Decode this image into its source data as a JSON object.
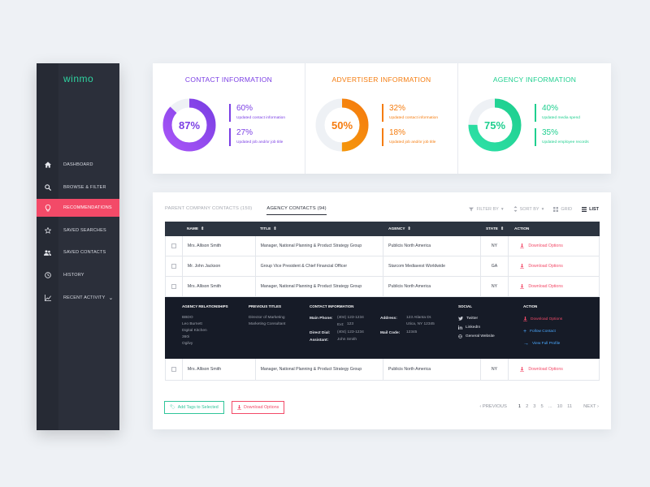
{
  "sidebar": {
    "logo": {
      "text": "winmo",
      "accent_color": "#2fd3a0",
      "dot_color": "#ff4b6a"
    },
    "items": [
      {
        "label": "DASHBOARD",
        "icon": "home-icon"
      },
      {
        "label": "BROWSE & FILTER",
        "icon": "search-icon"
      },
      {
        "label": "RECOMMENDATIONS",
        "icon": "lightbulb-icon",
        "active": true
      },
      {
        "label": "SAVED SEARCHES",
        "icon": "star-icon"
      },
      {
        "label": "SAVED CONTACTS",
        "icon": "people-icon"
      },
      {
        "label": "HISTORY",
        "icon": "clock-icon"
      },
      {
        "label": "RECENT ACTIVITY",
        "icon": "chart-line-icon",
        "has_caret": true
      }
    ]
  },
  "stats": [
    {
      "title": "CONTACT INFORMATION",
      "percent": "87%",
      "fill": 0.87,
      "color": "#7b3fe4",
      "color2": "#a855f7",
      "metrics": [
        {
          "value": "60%",
          "caption": "Updated contact information"
        },
        {
          "value": "27%",
          "caption": "Updated job and/or job title"
        }
      ]
    },
    {
      "title": "ADVERTISER INFORMATION",
      "percent": "50%",
      "fill": 0.5,
      "color": "#f57c0f",
      "color2": "#f59e0b",
      "metrics": [
        {
          "value": "32%",
          "caption": "Updated contact information"
        },
        {
          "value": "18%",
          "caption": "Updated job and/or job title"
        }
      ]
    },
    {
      "title": "AGENCY INFORMATION",
      "percent": "75%",
      "fill": 0.75,
      "color": "#1fcf8f",
      "color2": "#2de0a6",
      "metrics": [
        {
          "value": "40%",
          "caption": "Updated media spend"
        },
        {
          "value": "35%",
          "caption": "Updated employee records"
        }
      ]
    }
  ],
  "tabs": [
    {
      "label": "PARENT COMPANY CONTACTS (150)",
      "active": false
    },
    {
      "label": "AGENCY CONTACTS (94)",
      "active": true
    }
  ],
  "tools": {
    "filter": "FILTER BY",
    "sort": "SORT BY",
    "grid": "GRID",
    "list": "LIST"
  },
  "table": {
    "headers": {
      "name": "NAME",
      "title": "TITLE",
      "agency": "AGENCY",
      "state": "STATE",
      "action": "ACTION"
    },
    "rows": [
      {
        "name": "Mrs. Allison Smith",
        "title": "Manager, National Planning & Product Strategy Group",
        "agency": "Publicis North America",
        "state": "NY",
        "action": "Download Options"
      },
      {
        "name": "Mr. John Jackson",
        "title": "Group Vice President & Chief Financial Officer",
        "agency": "Starcom Mediavest Worldwide",
        "state": "GA",
        "action": "Download Options"
      },
      {
        "name": "Mrs. Allison Smith",
        "title": "Manager, National Planning & Product Strategy Group",
        "agency": "Publicis North America",
        "state": "NY",
        "action": "Download Options"
      }
    ],
    "last_row": {
      "name": "Mrs. Allison Smith",
      "title": "Manager, National Planning & Product Strategy Group",
      "agency": "Publicis North America",
      "state": "NY",
      "action": "Download Options"
    }
  },
  "expanded": {
    "relationships_header": "AGENCY RELATIONSHIPS",
    "relationships": "BBDO\nLeo Burnett\nDigital Kitchen\n360i\nOgilvy",
    "previous_header": "PREVIOUS TITLES",
    "previous": "Director of Marketing\nMarketing Consultant",
    "contact_header": "CONTACT INFORMATION",
    "main_phone_label": "Main Phone:",
    "main_phone": "(404) 123-1234",
    "ext_label": "Ext:",
    "ext": "123",
    "direct_label": "Direct Dial:",
    "direct": "(404) 123-1234",
    "assistant_label": "Assistant:",
    "assistant": "John Smith",
    "address_label": "Address:",
    "address": "123 Atlanta Dr.\nUtica, NY 12345",
    "mail_label": "Mail Code:",
    "mail": "12345",
    "social_header": "SOCIAL",
    "twitter": "Twitter",
    "linkedin": "LinkedIn",
    "website": "General Website",
    "action_header": "ACTION",
    "download": "Download Options",
    "follow": "Follow Contact",
    "profile": "View Full Profile"
  },
  "footer": {
    "add_tags": "Add Tags to Selected",
    "download": "Download Options",
    "prev": "PREVIOUS",
    "pages": [
      "1",
      "2",
      "3",
      "5",
      "...",
      "10",
      "11"
    ],
    "next": "NEXT"
  }
}
